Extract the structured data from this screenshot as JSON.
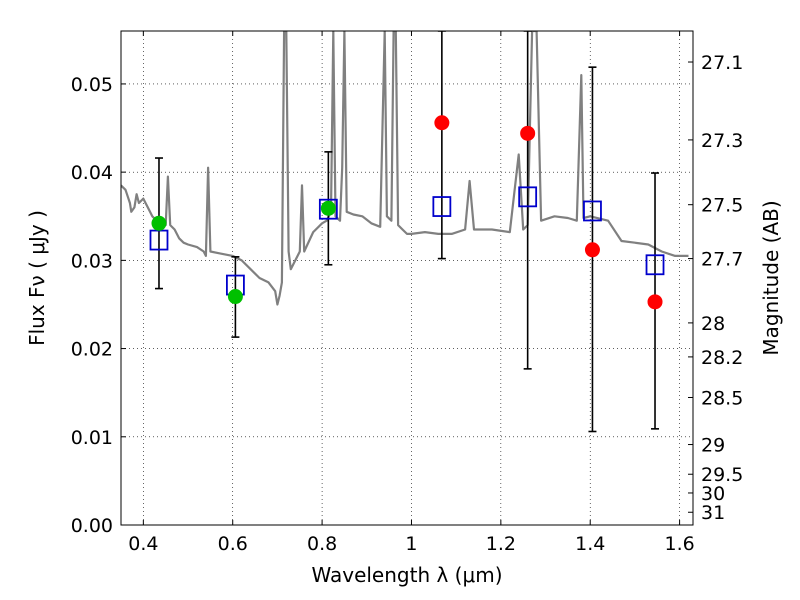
{
  "chart_data": {
    "type": "scatter",
    "xlabel": "Wavelength  λ (μm)",
    "ylabel": "Flux  Fν  ( μJy )",
    "ylabel_right": "Magnitude (AB)",
    "xlim": [
      0.35,
      1.63
    ],
    "ylim": [
      0.0,
      0.056
    ],
    "grid": true,
    "x_ticks": [
      {
        "value": 0.4,
        "label": "0.4"
      },
      {
        "value": 0.6,
        "label": "0.6"
      },
      {
        "value": 0.8,
        "label": "0.8"
      },
      {
        "value": 1.0,
        "label": "1"
      },
      {
        "value": 1.2,
        "label": "1.2"
      },
      {
        "value": 1.4,
        "label": "1.4"
      },
      {
        "value": 1.6,
        "label": "1.6"
      }
    ],
    "y_ticks": [
      {
        "value": 0.0,
        "label": "0.00"
      },
      {
        "value": 0.01,
        "label": "0.01"
      },
      {
        "value": 0.02,
        "label": "0.02"
      },
      {
        "value": 0.03,
        "label": "0.03"
      },
      {
        "value": 0.04,
        "label": "0.04"
      },
      {
        "value": 0.05,
        "label": "0.05"
      }
    ],
    "right_ticks": [
      {
        "value": 27.1,
        "label": "27.1"
      },
      {
        "value": 27.3,
        "label": "27.3"
      },
      {
        "value": 27.5,
        "label": "27.5"
      },
      {
        "value": 27.7,
        "label": "27.7"
      },
      {
        "value": 28.0,
        "label": "28"
      },
      {
        "value": 28.2,
        "label": "28.2"
      },
      {
        "value": 28.5,
        "label": "28.5"
      },
      {
        "value": 29.0,
        "label": "29"
      },
      {
        "value": 29.5,
        "label": "29.5"
      },
      {
        "value": 30.0,
        "label": "30"
      },
      {
        "value": 31.0,
        "label": "31"
      }
    ],
    "model_spectrum": {
      "color": "#808080",
      "points": [
        [
          0.35,
          0.0385
        ],
        [
          0.36,
          0.038
        ],
        [
          0.37,
          0.0365
        ],
        [
          0.373,
          0.0355
        ],
        [
          0.38,
          0.036
        ],
        [
          0.385,
          0.0375
        ],
        [
          0.39,
          0.0365
        ],
        [
          0.4,
          0.037
        ],
        [
          0.41,
          0.036
        ],
        [
          0.42,
          0.035
        ],
        [
          0.43,
          0.0345
        ],
        [
          0.44,
          0.034
        ],
        [
          0.45,
          0.034
        ],
        [
          0.455,
          0.0395
        ],
        [
          0.46,
          0.034
        ],
        [
          0.47,
          0.0335
        ],
        [
          0.48,
          0.0325
        ],
        [
          0.49,
          0.032
        ],
        [
          0.5,
          0.0318
        ],
        [
          0.52,
          0.0315
        ],
        [
          0.535,
          0.031
        ],
        [
          0.54,
          0.0305
        ],
        [
          0.545,
          0.0405
        ],
        [
          0.55,
          0.031
        ],
        [
          0.57,
          0.0308
        ],
        [
          0.6,
          0.0305
        ],
        [
          0.62,
          0.03
        ],
        [
          0.64,
          0.029
        ],
        [
          0.66,
          0.028
        ],
        [
          0.68,
          0.0275
        ],
        [
          0.695,
          0.0265
        ],
        [
          0.7,
          0.025
        ],
        [
          0.705,
          0.026
        ],
        [
          0.71,
          0.0275
        ],
        [
          0.715,
          0.056
        ],
        [
          0.72,
          0.056
        ],
        [
          0.725,
          0.031
        ],
        [
          0.73,
          0.029
        ],
        [
          0.75,
          0.031
        ],
        [
          0.755,
          0.0385
        ],
        [
          0.76,
          0.031
        ],
        [
          0.78,
          0.0332
        ],
        [
          0.8,
          0.0342
        ],
        [
          0.81,
          0.0345
        ],
        [
          0.82,
          0.0355
        ],
        [
          0.825,
          0.056
        ],
        [
          0.83,
          0.035
        ],
        [
          0.84,
          0.0345
        ],
        [
          0.845,
          0.0405
        ],
        [
          0.85,
          0.056
        ],
        [
          0.855,
          0.0355
        ],
        [
          0.87,
          0.0352
        ],
        [
          0.89,
          0.035
        ],
        [
          0.91,
          0.0342
        ],
        [
          0.93,
          0.0338
        ],
        [
          0.94,
          0.056
        ],
        [
          0.945,
          0.035
        ],
        [
          0.955,
          0.0345
        ],
        [
          0.96,
          0.056
        ],
        [
          0.965,
          0.056
        ],
        [
          0.97,
          0.034
        ],
        [
          0.98,
          0.0335
        ],
        [
          0.99,
          0.033
        ],
        [
          1.0,
          0.033
        ],
        [
          1.03,
          0.0332
        ],
        [
          1.06,
          0.033
        ],
        [
          1.09,
          0.033
        ],
        [
          1.12,
          0.0335
        ],
        [
          1.13,
          0.039
        ],
        [
          1.14,
          0.0335
        ],
        [
          1.18,
          0.0335
        ],
        [
          1.22,
          0.0332
        ],
        [
          1.24,
          0.042
        ],
        [
          1.25,
          0.0335
        ],
        [
          1.26,
          0.034
        ],
        [
          1.27,
          0.056
        ],
        [
          1.28,
          0.056
        ],
        [
          1.29,
          0.0345
        ],
        [
          1.32,
          0.035
        ],
        [
          1.35,
          0.0348
        ],
        [
          1.37,
          0.0345
        ],
        [
          1.38,
          0.051
        ],
        [
          1.385,
          0.0348
        ],
        [
          1.4,
          0.035
        ],
        [
          1.44,
          0.0345
        ],
        [
          1.47,
          0.0322
        ],
        [
          1.5,
          0.032
        ],
        [
          1.53,
          0.0318
        ],
        [
          1.56,
          0.031
        ],
        [
          1.59,
          0.0305
        ],
        [
          1.62,
          0.0305
        ]
      ]
    },
    "model_photometry": {
      "marker": "open-square",
      "color": "#0000cc",
      "points": [
        {
          "x": 0.435,
          "y": 0.0323
        },
        {
          "x": 0.606,
          "y": 0.0272
        },
        {
          "x": 0.814,
          "y": 0.0358
        },
        {
          "x": 1.068,
          "y": 0.0361
        },
        {
          "x": 1.26,
          "y": 0.0372
        },
        {
          "x": 1.405,
          "y": 0.0356
        },
        {
          "x": 1.545,
          "y": 0.0295
        }
      ]
    },
    "observed_photometry": [
      {
        "x": 0.435,
        "y": 0.0342,
        "yerr_low": 0.0268,
        "yerr_high": 0.0416,
        "color": "#00c000"
      },
      {
        "x": 0.606,
        "y": 0.0259,
        "yerr_low": 0.0213,
        "yerr_high": 0.0304,
        "color": "#00c000"
      },
      {
        "x": 0.814,
        "y": 0.0359,
        "yerr_low": 0.0295,
        "yerr_high": 0.0423,
        "color": "#00c000"
      },
      {
        "x": 1.068,
        "y": 0.0456,
        "yerr_low": 0.0302,
        "yerr_high": 0.056,
        "color": "#ff0000"
      },
      {
        "x": 1.26,
        "y": 0.0444,
        "yerr_low": 0.0177,
        "yerr_high": 0.056,
        "color": "#ff0000"
      },
      {
        "x": 1.405,
        "y": 0.0312,
        "yerr_low": 0.0106,
        "yerr_high": 0.0519,
        "color": "#ff0000"
      },
      {
        "x": 1.545,
        "y": 0.0253,
        "yerr_low": 0.0109,
        "yerr_high": 0.0399,
        "color": "#ff0000"
      }
    ]
  }
}
